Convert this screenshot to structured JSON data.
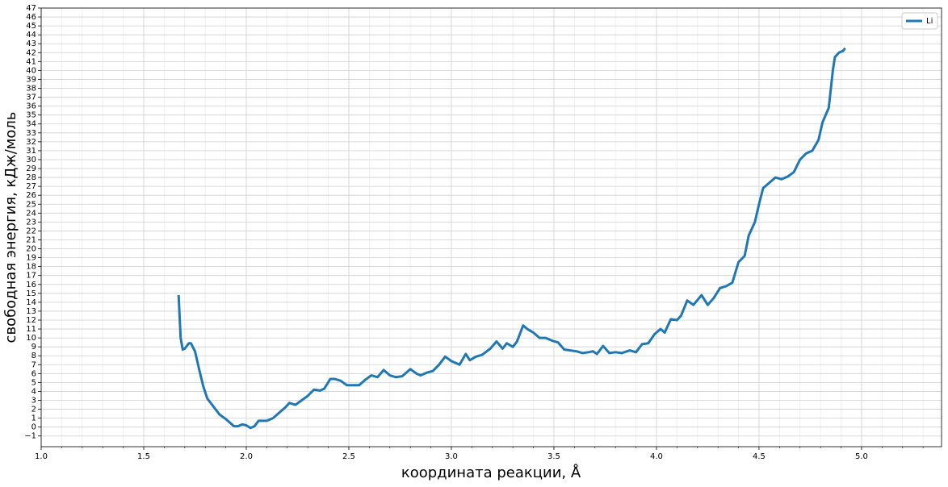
{
  "chart_data": {
    "type": "line",
    "xlabel": "координата реакции, Å",
    "ylabel": "свободная энергия, кДж/моль",
    "xlim": [
      1.0,
      5.39
    ],
    "ylim": [
      -2.2,
      47
    ],
    "xticks": [
      {
        "value": 1,
        "label": "1.0"
      },
      1.5,
      {
        "value": 2,
        "label": "2.0"
      },
      2.5,
      {
        "value": 3,
        "label": "3.0"
      },
      3.5,
      {
        "value": 4,
        "label": "4.0"
      },
      4.5,
      {
        "value": 5,
        "label": "5.0"
      }
    ],
    "minor_xticks": [
      1.1,
      1.2,
      1.3,
      1.4,
      1.6,
      1.7,
      1.8,
      1.9,
      2.1,
      2.2,
      2.3,
      2.4,
      2.6,
      2.7,
      2.8,
      2.9,
      3.1,
      3.2,
      3.3,
      3.4,
      3.6,
      3.7,
      3.8,
      3.9,
      4.1,
      4.2,
      4.3,
      4.4,
      4.6,
      4.7,
      4.8,
      4.9,
      5.1,
      5.2,
      5.3
    ],
    "yticks": [
      {
        "value": -1,
        "label": "−1"
      },
      0,
      1,
      2,
      3,
      4,
      5,
      6,
      7,
      8,
      9,
      10,
      11,
      12,
      13,
      14,
      15,
      16,
      17,
      18,
      19,
      20,
      21,
      22,
      23,
      24,
      25,
      26,
      27,
      28,
      29,
      30,
      31,
      32,
      33,
      34,
      35,
      36,
      37,
      38,
      39,
      40,
      41,
      42,
      43,
      44,
      45,
      46,
      47
    ],
    "grid": true,
    "legend": "upper right",
    "x": [
      1.67,
      1.68,
      1.69,
      1.7,
      1.72,
      1.73,
      1.75,
      1.77,
      1.79,
      1.81,
      1.83,
      1.85,
      1.87,
      1.9,
      1.92,
      1.94,
      1.96,
      1.98,
      2.0,
      2.02,
      2.04,
      2.06,
      2.08,
      2.1,
      2.13,
      2.16,
      2.19,
      2.21,
      2.24,
      2.27,
      2.3,
      2.33,
      2.36,
      2.38,
      2.41,
      2.43,
      2.46,
      2.49,
      2.52,
      2.55,
      2.58,
      2.61,
      2.64,
      2.67,
      2.7,
      2.73,
      2.76,
      2.8,
      2.83,
      2.85,
      2.88,
      2.91,
      2.94,
      2.97,
      3.0,
      3.04,
      3.07,
      3.09,
      3.12,
      3.15,
      3.19,
      3.22,
      3.25,
      3.27,
      3.3,
      3.32,
      3.35,
      3.37,
      3.4,
      3.43,
      3.46,
      3.49,
      3.52,
      3.55,
      3.58,
      3.61,
      3.64,
      3.67,
      3.69,
      3.71,
      3.74,
      3.77,
      3.8,
      3.83,
      3.87,
      3.9,
      3.93,
      3.96,
      3.99,
      4.02,
      4.04,
      4.07,
      4.1,
      4.12,
      4.15,
      4.18,
      4.22,
      4.25,
      4.28,
      4.31,
      4.34,
      4.37,
      4.4,
      4.43,
      4.45,
      4.48,
      4.5,
      4.52,
      4.55,
      4.58,
      4.61,
      4.64,
      4.67,
      4.7,
      4.73,
      4.76,
      4.79,
      4.81,
      4.84,
      4.86,
      4.87,
      4.89,
      4.91,
      4.92
    ],
    "series": [
      {
        "name": "Li",
        "color": "#1f77b4",
        "values": [
          14.8,
          10.0,
          8.7,
          8.8,
          9.4,
          9.4,
          8.5,
          6.5,
          4.6,
          3.2,
          2.6,
          2.0,
          1.4,
          0.9,
          0.5,
          0.1,
          0.1,
          0.3,
          0.2,
          -0.1,
          0.1,
          0.7,
          0.7,
          0.7,
          1.0,
          1.6,
          2.2,
          2.7,
          2.5,
          3.0,
          3.5,
          4.2,
          4.1,
          4.3,
          5.4,
          5.4,
          5.2,
          4.7,
          4.7,
          4.7,
          5.3,
          5.8,
          5.6,
          6.4,
          5.8,
          5.6,
          5.7,
          6.5,
          6.0,
          5.8,
          6.1,
          6.3,
          7.0,
          7.9,
          7.4,
          7.0,
          8.2,
          7.5,
          7.9,
          8.1,
          8.8,
          9.6,
          8.8,
          9.4,
          9.0,
          9.6,
          11.4,
          11.0,
          10.6,
          10.0,
          10.0,
          9.7,
          9.5,
          8.7,
          8.6,
          8.5,
          8.3,
          8.4,
          8.5,
          8.2,
          9.1,
          8.3,
          8.4,
          8.3,
          8.6,
          8.4,
          9.3,
          9.4,
          10.4,
          11.0,
          10.6,
          12.1,
          12.0,
          12.5,
          14.2,
          13.7,
          14.8,
          13.7,
          14.5,
          15.6,
          15.8,
          16.2,
          18.5,
          19.2,
          21.5,
          23.0,
          25.0,
          26.8,
          27.4,
          28.0,
          27.8,
          28.1,
          28.6,
          30.0,
          30.7,
          31.0,
          32.2,
          34.2,
          35.8,
          40.0,
          41.5,
          42.0,
          42.2,
          42.5
        ]
      }
    ]
  }
}
